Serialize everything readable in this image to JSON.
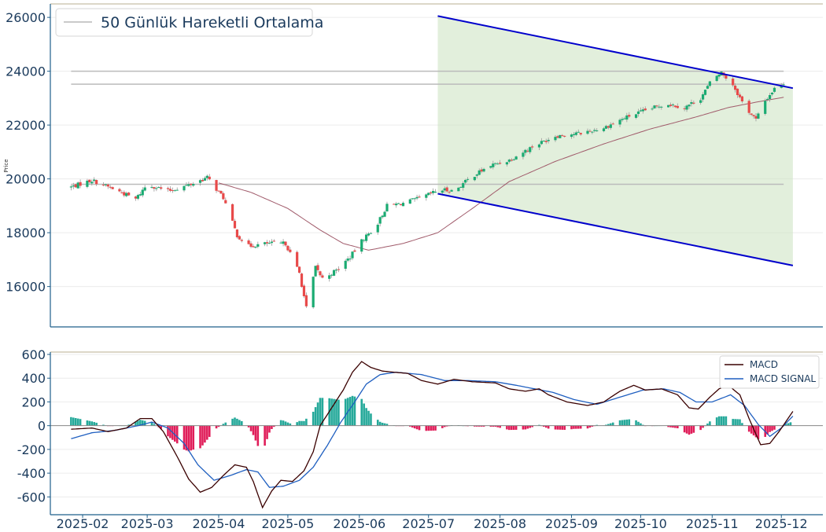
{
  "chart_data": [
    {
      "type": "candlestick",
      "ylabel": "Price",
      "ylim": [
        14500,
        26500
      ],
      "yticks": [
        16000,
        18000,
        20000,
        22000,
        24000,
        26000
      ],
      "grid": true,
      "legend": {
        "placement": "top-left",
        "entries": [
          "50 Günlük Hareketli Ortalama"
        ]
      },
      "colors": {
        "up": "#1aab72",
        "down": "#e84a4a",
        "ma": "#a05a6a",
        "channel": "#0000cc",
        "channel_fill": "#cfe5c4",
        "level": "#bbbbbb"
      },
      "close_keypoints": [
        [
          "2025-01-27",
          19700
        ],
        [
          "2025-02-05",
          19950
        ],
        [
          "2025-02-15",
          19600
        ],
        [
          "2025-02-24",
          19250
        ],
        [
          "2025-03-01",
          19800
        ],
        [
          "2025-03-10",
          19550
        ],
        [
          "2025-03-20",
          19800
        ],
        [
          "2025-03-27",
          20050
        ],
        [
          "2025-04-03",
          19300
        ],
        [
          "2025-04-09",
          17900
        ],
        [
          "2025-04-14",
          17500
        ],
        [
          "2025-04-22",
          17600
        ],
        [
          "2025-04-30",
          17600
        ],
        [
          "2025-05-06",
          16500
        ],
        [
          "2025-05-09",
          15200
        ],
        [
          "2025-05-13",
          16700
        ],
        [
          "2025-05-16",
          16300
        ],
        [
          "2025-05-22",
          16600
        ],
        [
          "2025-05-28",
          17100
        ],
        [
          "2025-06-03",
          17800
        ],
        [
          "2025-06-08",
          18200
        ],
        [
          "2025-06-13",
          19000
        ],
        [
          "2025-06-20",
          19100
        ],
        [
          "2025-06-28",
          19300
        ],
        [
          "2025-07-06",
          19600
        ],
        [
          "2025-07-12",
          19550
        ],
        [
          "2025-07-20",
          20100
        ],
        [
          "2025-07-28",
          20500
        ],
        [
          "2025-08-05",
          20700
        ],
        [
          "2025-08-15",
          21200
        ],
        [
          "2025-08-25",
          21600
        ],
        [
          "2025-09-05",
          21700
        ],
        [
          "2025-09-15",
          21900
        ],
        [
          "2025-09-25",
          22300
        ],
        [
          "2025-10-05",
          22600
        ],
        [
          "2025-10-12",
          22800
        ],
        [
          "2025-10-20",
          22650
        ],
        [
          "2025-10-27",
          23000
        ],
        [
          "2025-11-01",
          23700
        ],
        [
          "2025-11-05",
          23950
        ],
        [
          "2025-11-10",
          23500
        ],
        [
          "2025-11-15",
          22700
        ],
        [
          "2025-11-20",
          22200
        ],
        [
          "2025-11-24",
          22900
        ],
        [
          "2025-11-28",
          23350
        ],
        [
          "2025-12-02",
          23550
        ]
      ],
      "ma50_keypoints": [
        [
          "2025-04-01",
          19850
        ],
        [
          "2025-04-15",
          19500
        ],
        [
          "2025-05-01",
          18900
        ],
        [
          "2025-05-15",
          18100
        ],
        [
          "2025-05-25",
          17600
        ],
        [
          "2025-06-05",
          17350
        ],
        [
          "2025-06-20",
          17600
        ],
        [
          "2025-07-05",
          18000
        ],
        [
          "2025-07-20",
          18900
        ],
        [
          "2025-08-05",
          19900
        ],
        [
          "2025-08-25",
          20650
        ],
        [
          "2025-09-15",
          21300
        ],
        [
          "2025-10-05",
          21850
        ],
        [
          "2025-10-25",
          22300
        ],
        [
          "2025-11-08",
          22650
        ],
        [
          "2025-11-20",
          22850
        ],
        [
          "2025-12-02",
          23030
        ]
      ],
      "channel": {
        "upper": [
          [
            "2025-07-05",
            26050
          ],
          [
            "2025-12-06",
            23370
          ]
        ],
        "lower": [
          [
            "2025-07-05",
            19450
          ],
          [
            "2025-12-06",
            16780
          ]
        ]
      },
      "levels": [
        {
          "y": 24000,
          "from": "2025-01-27",
          "to": "2025-12-02"
        },
        {
          "y": 23520,
          "from": "2025-01-27",
          "to": "2025-12-02"
        },
        {
          "y": 19800,
          "from": "2025-01-27",
          "to": "2025-12-02"
        }
      ]
    },
    {
      "type": "line",
      "ylim": [
        -750,
        620
      ],
      "yticks": [
        -600,
        -400,
        -200,
        0,
        200,
        400,
        600
      ],
      "grid": true,
      "legend": {
        "placement": "top-right",
        "entries": [
          "MACD",
          "MACD SIGNAL"
        ]
      },
      "colors": {
        "macd": "#3a0000",
        "signal": "#1f5fc0",
        "hist_up": "#25a99a",
        "hist_down": "#e01e5a"
      },
      "series": [
        {
          "name": "MACD",
          "keypoints": [
            [
              "2025-01-27",
              -30
            ],
            [
              "2025-02-05",
              -20
            ],
            [
              "2025-02-12",
              -50
            ],
            [
              "2025-02-20",
              -20
            ],
            [
              "2025-02-26",
              60
            ],
            [
              "2025-03-03",
              60
            ],
            [
              "2025-03-08",
              -50
            ],
            [
              "2025-03-14",
              -260
            ],
            [
              "2025-03-19",
              -450
            ],
            [
              "2025-03-24",
              -560
            ],
            [
              "2025-03-29",
              -520
            ],
            [
              "2025-04-03",
              -420
            ],
            [
              "2025-04-08",
              -330
            ],
            [
              "2025-04-13",
              -350
            ],
            [
              "2025-04-16",
              -470
            ],
            [
              "2025-04-20",
              -690
            ],
            [
              "2025-04-24",
              -550
            ],
            [
              "2025-04-28",
              -460
            ],
            [
              "2025-05-03",
              -470
            ],
            [
              "2025-05-08",
              -380
            ],
            [
              "2025-05-12",
              -220
            ],
            [
              "2025-05-15",
              0
            ],
            [
              "2025-05-20",
              150
            ],
            [
              "2025-05-25",
              300
            ],
            [
              "2025-05-29",
              450
            ],
            [
              "2025-06-02",
              540
            ],
            [
              "2025-06-06",
              490
            ],
            [
              "2025-06-11",
              460
            ],
            [
              "2025-06-16",
              450
            ],
            [
              "2025-06-22",
              440
            ],
            [
              "2025-06-28",
              380
            ],
            [
              "2025-07-05",
              350
            ],
            [
              "2025-07-12",
              390
            ],
            [
              "2025-07-20",
              370
            ],
            [
              "2025-07-30",
              360
            ],
            [
              "2025-08-05",
              310
            ],
            [
              "2025-08-12",
              290
            ],
            [
              "2025-08-18",
              310
            ],
            [
              "2025-08-22",
              260
            ],
            [
              "2025-08-30",
              200
            ],
            [
              "2025-09-08",
              170
            ],
            [
              "2025-09-15",
              200
            ],
            [
              "2025-09-22",
              290
            ],
            [
              "2025-09-28",
              340
            ],
            [
              "2025-10-03",
              300
            ],
            [
              "2025-10-10",
              310
            ],
            [
              "2025-10-17",
              260
            ],
            [
              "2025-10-22",
              150
            ],
            [
              "2025-10-26",
              140
            ],
            [
              "2025-10-31",
              240
            ],
            [
              "2025-11-04",
              310
            ],
            [
              "2025-11-08",
              340
            ],
            [
              "2025-11-13",
              260
            ],
            [
              "2025-11-17",
              60
            ],
            [
              "2025-11-22",
              -160
            ],
            [
              "2025-11-26",
              -150
            ],
            [
              "2025-11-30",
              -50
            ],
            [
              "2025-12-06",
              120
            ]
          ]
        },
        {
          "name": "MACD SIGNAL",
          "keypoints": [
            [
              "2025-01-27",
              -110
            ],
            [
              "2025-02-05",
              -60
            ],
            [
              "2025-02-15",
              -40
            ],
            [
              "2025-02-25",
              0
            ],
            [
              "2025-03-03",
              30
            ],
            [
              "2025-03-10",
              -20
            ],
            [
              "2025-03-17",
              -150
            ],
            [
              "2025-03-23",
              -330
            ],
            [
              "2025-03-30",
              -460
            ],
            [
              "2025-04-06",
              -420
            ],
            [
              "2025-04-13",
              -370
            ],
            [
              "2025-04-18",
              -390
            ],
            [
              "2025-04-23",
              -520
            ],
            [
              "2025-04-29",
              -510
            ],
            [
              "2025-05-06",
              -460
            ],
            [
              "2025-05-12",
              -350
            ],
            [
              "2025-05-18",
              -170
            ],
            [
              "2025-05-24",
              30
            ],
            [
              "2025-05-30",
              200
            ],
            [
              "2025-06-04",
              350
            ],
            [
              "2025-06-10",
              430
            ],
            [
              "2025-06-17",
              450
            ],
            [
              "2025-06-28",
              430
            ],
            [
              "2025-07-08",
              380
            ],
            [
              "2025-07-18",
              380
            ],
            [
              "2025-07-30",
              370
            ],
            [
              "2025-08-08",
              340
            ],
            [
              "2025-08-16",
              310
            ],
            [
              "2025-08-24",
              280
            ],
            [
              "2025-09-02",
              220
            ],
            [
              "2025-09-12",
              180
            ],
            [
              "2025-09-22",
              240
            ],
            [
              "2025-10-02",
              300
            ],
            [
              "2025-10-11",
              310
            ],
            [
              "2025-10-18",
              280
            ],
            [
              "2025-10-25",
              200
            ],
            [
              "2025-11-01",
              200
            ],
            [
              "2025-11-09",
              260
            ],
            [
              "2025-11-15",
              170
            ],
            [
              "2025-11-21",
              10
            ],
            [
              "2025-11-26",
              -90
            ],
            [
              "2025-12-01",
              -20
            ],
            [
              "2025-12-06",
              80
            ]
          ]
        }
      ]
    }
  ],
  "x_axis": {
    "tick_labels": [
      "2025-02",
      "2025-03",
      "2025-04",
      "2025-05",
      "2025-06",
      "2025-07",
      "2025-08",
      "2025-09",
      "2025-10",
      "2025-11",
      "2025-12"
    ],
    "tick_dates": [
      "2025-02-01",
      "2025-03-01",
      "2025-04-01",
      "2025-05-01",
      "2025-06-01",
      "2025-07-01",
      "2025-08-01",
      "2025-09-01",
      "2025-10-01",
      "2025-11-01",
      "2025-12-01"
    ],
    "range": [
      "2025-01-18",
      "2025-12-19"
    ]
  }
}
